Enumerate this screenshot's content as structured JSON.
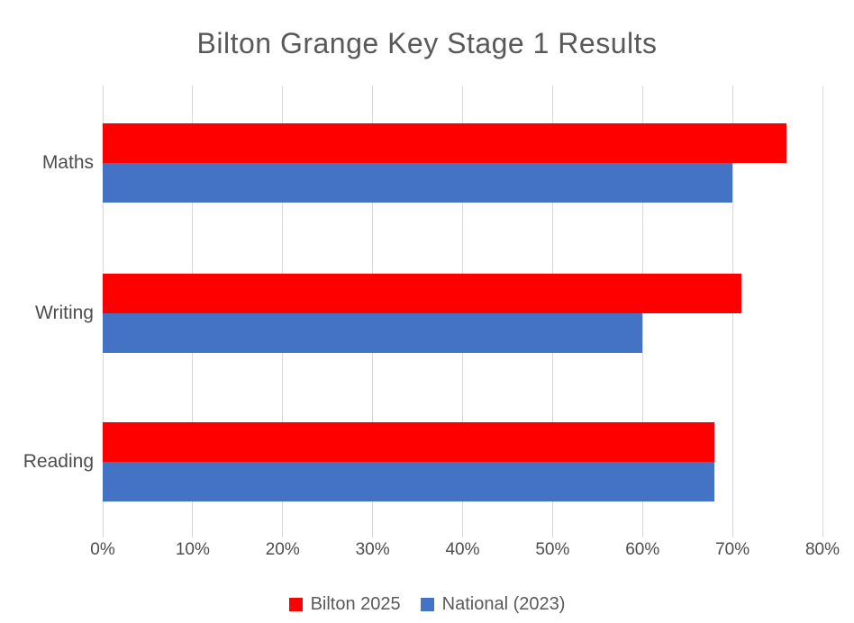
{
  "title": "Bilton Grange Key Stage 1 Results",
  "colors": {
    "bilton_red": "#FF0000",
    "national_blue": "#4472C4",
    "gridline": "#D9D9D9",
    "title_text": "#595959",
    "axis_text": "#4D4D4D"
  },
  "chart_data": {
    "type": "bar",
    "orientation": "horizontal",
    "title": "Bilton Grange Key Stage 1 Results",
    "categories": [
      "Maths",
      "Writing",
      "Reading"
    ],
    "series": [
      {
        "name": "Bilton 2025",
        "color": "#FF0000",
        "values": [
          76,
          71,
          68
        ]
      },
      {
        "name": "National (2023)",
        "color": "#4472C4",
        "values": [
          70,
          60,
          68
        ]
      }
    ],
    "xlabel": "",
    "ylabel": "",
    "x_axis": {
      "min": 0,
      "max": 80,
      "tick_step": 10,
      "tick_labels": [
        "0%",
        "10%",
        "20%",
        "30%",
        "40%",
        "50%",
        "60%",
        "70%",
        "80%"
      ]
    },
    "grid": true,
    "legend_position": "bottom"
  }
}
